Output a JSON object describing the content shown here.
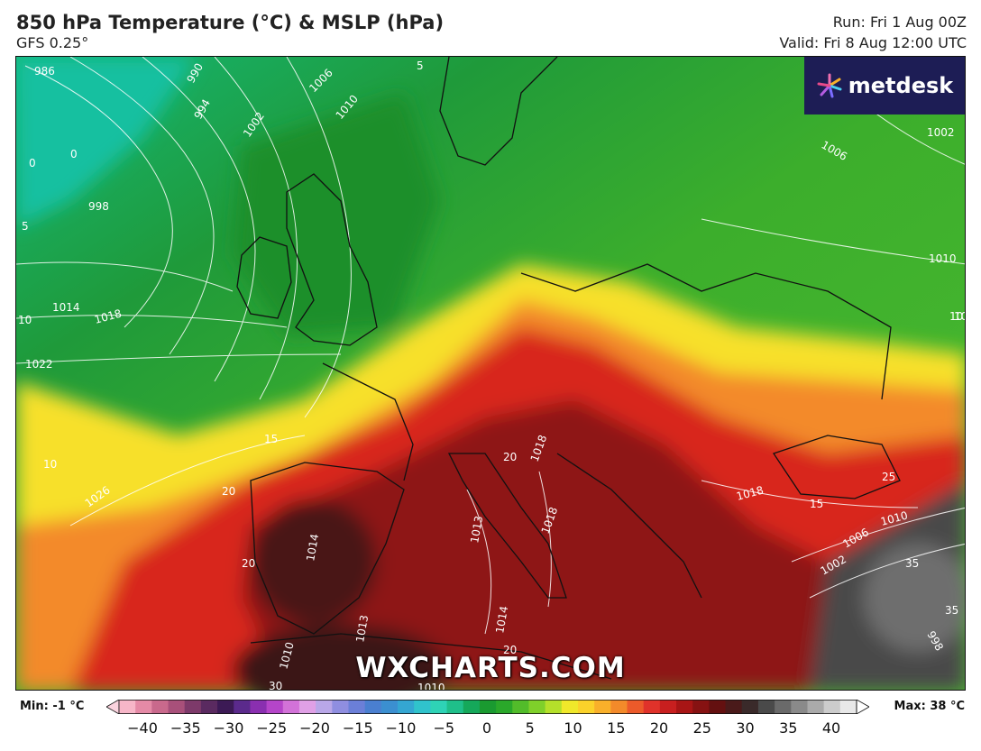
{
  "header": {
    "title": "850 hPa Temperature (°C) & MSLP (hPa)",
    "model": "GFS 0.25°",
    "run": "Run: Fri 1 Aug 00Z",
    "valid": "Valid: Fri 8 Aug 12:00 UTC"
  },
  "brand": {
    "name": "metdesk"
  },
  "watermark": "WXCHARTS.COM",
  "colorbar": {
    "min_label": "Min: -1 °C",
    "max_label": "Max: 38 °C",
    "ticks": [
      "−40",
      "−35",
      "−30",
      "−25",
      "−20",
      "−15",
      "−10",
      "−5",
      "0",
      "5",
      "10",
      "15",
      "20",
      "25",
      "30",
      "35",
      "40"
    ],
    "colors": [
      "#f7b6c8",
      "#e58aa6",
      "#c9698c",
      "#a8507a",
      "#7d3a6a",
      "#5a2a60",
      "#3c1a55",
      "#5b2a8c",
      "#8a2fb0",
      "#b545c9",
      "#d272d8",
      "#e0a0e6",
      "#b9a7e8",
      "#8f8ee0",
      "#6b7fd8",
      "#4a7fd0",
      "#3b8fd0",
      "#34a6d2",
      "#30c3cc",
      "#2ed3b6",
      "#1fbf8a",
      "#15a85a",
      "#1a9a30",
      "#2aa82a",
      "#52bc2a",
      "#7fd02a",
      "#b5e02a",
      "#f0e82a",
      "#fbd22a",
      "#f9b02a",
      "#f38a2a",
      "#ec5a2a",
      "#e0322a",
      "#c81f1f",
      "#a81515",
      "#861212",
      "#641010",
      "#4a1a1a",
      "#3a2a2a",
      "#4a4a4a",
      "#6a6a6a",
      "#8a8a8a",
      "#aaaaaa",
      "#cccccc",
      "#e8e8e8"
    ]
  },
  "map_labels": {
    "isobars": [
      "986",
      "990",
      "994",
      "998",
      "1002",
      "1006",
      "1010",
      "1014",
      "1018",
      "1022",
      "1026",
      "1006",
      "1002",
      "1010",
      "1018",
      "1014",
      "1018",
      "1010",
      "1002",
      "1006",
      "998",
      "1010",
      "1013",
      "1018",
      "1014",
      "1013",
      "1010"
    ],
    "isotherms": [
      "0",
      "0",
      "5",
      "5",
      "10",
      "10",
      "10",
      "15",
      "15",
      "20",
      "20",
      "20",
      "20",
      "25",
      "30",
      "35",
      "35",
      "10"
    ]
  }
}
